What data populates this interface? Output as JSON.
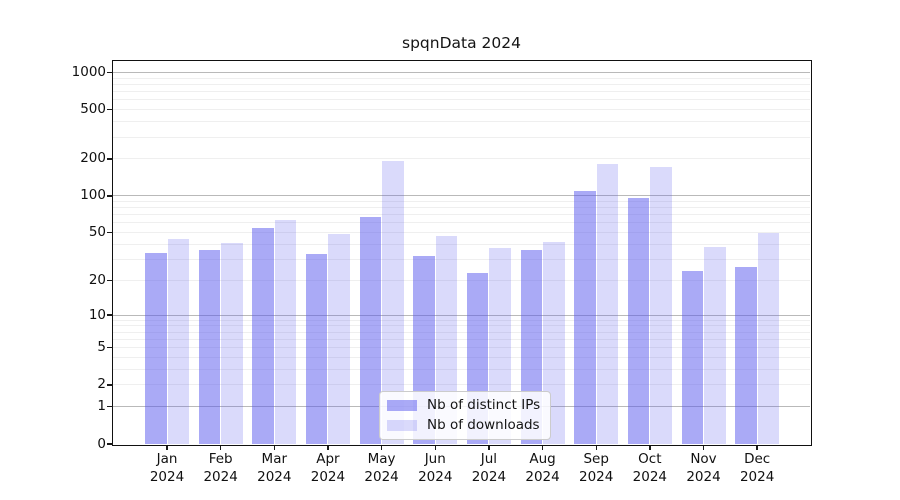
{
  "title": "spqnData 2024",
  "chart_data": {
    "type": "bar",
    "title": "spqnData 2024",
    "subtitle": "",
    "xlabel": "",
    "ylabel": "",
    "categories": [
      "Jan",
      "Feb",
      "Mar",
      "Apr",
      "May",
      "Jun",
      "Jul",
      "Aug",
      "Sep",
      "Oct",
      "Nov",
      "Dec"
    ],
    "category_year": "2024",
    "series": [
      {
        "name": "Nb of distinct IPs",
        "color": "rgba(85,85,238,0.5)",
        "color_hex_on_white": "#aaaaf6",
        "values": [
          34,
          36,
          55,
          33,
          67,
          32,
          23,
          36,
          110,
          96,
          24,
          26
        ]
      },
      {
        "name": "Nb of downloads",
        "color": "rgba(85,85,238,0.22)",
        "color_hex_on_white": "#d9d9fb",
        "values": [
          44,
          41,
          63,
          49,
          193,
          47,
          37,
          42,
          180,
          173,
          38,
          50
        ]
      }
    ],
    "yscale": "log1p",
    "ylim": [
      0,
      1240
    ],
    "yticks": [
      0,
      1,
      2,
      5,
      10,
      20,
      50,
      100,
      200,
      500,
      1000
    ],
    "grid": {
      "major_values": [
        1,
        10,
        100,
        1000
      ],
      "major_color": "#b9b9b9",
      "minor_color": "#efefef"
    },
    "legend": {
      "position": "lower center"
    }
  }
}
